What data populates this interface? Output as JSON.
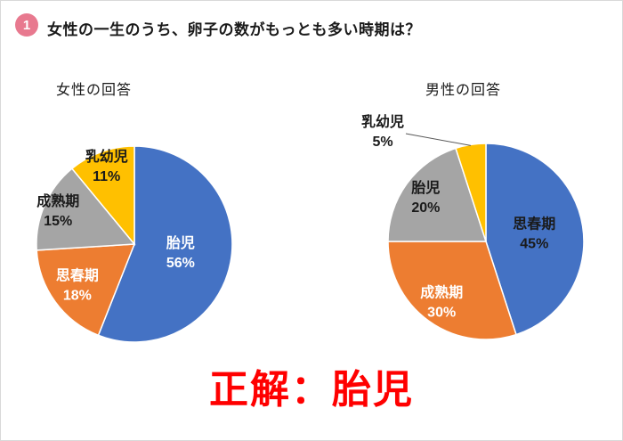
{
  "header": {
    "number": "1",
    "question": "女性の一生のうち、卵子の数がもっとも多い時期は？"
  },
  "answer": "正解：胎児",
  "theme": {
    "badge_color": "#E8798F",
    "answer_color": "#FF0000",
    "leader_line_color": "#595959"
  },
  "chart_data": [
    {
      "type": "pie",
      "title": "女性の回答",
      "legend_position": "none",
      "slices": [
        {
          "label": "胎児",
          "value": 56,
          "color": "#4472C4",
          "text_color": "#FFFFFF",
          "label_r": 0.48
        },
        {
          "label": "思春期",
          "value": 18,
          "color": "#ED7D31",
          "text_color": "#FFFFFF",
          "label_r": 0.72
        },
        {
          "label": "成熟期",
          "value": 15,
          "color": "#A5A5A5",
          "text_color": "#1A1A1A",
          "label_r": 0.85
        },
        {
          "label": "乳幼児",
          "value": 11,
          "color": "#FFC000",
          "text_color": "#1A1A1A",
          "label_r": 0.84
        }
      ]
    },
    {
      "type": "pie",
      "title": "男性の回答",
      "legend_position": "none",
      "slices": [
        {
          "label": "思春期",
          "value": 45,
          "color": "#4472C4",
          "text_color": "#1A1A1A",
          "label_r": 0.5
        },
        {
          "label": "成熟期",
          "value": 30,
          "color": "#ED7D31",
          "text_color": "#FFFFFF",
          "label_r": 0.77
        },
        {
          "label": "胎児",
          "value": 20,
          "color": "#A5A5A5",
          "text_color": "#1A1A1A",
          "label_r": 0.76
        },
        {
          "label": "乳幼児",
          "value": 5,
          "color": "#FFC000",
          "text_color": "#1A1A1A",
          "outside": true,
          "label_pos": {
            "x": 34,
            "y": 32
          },
          "line_from": {
            "x": 60,
            "y": 34
          }
        }
      ]
    }
  ]
}
